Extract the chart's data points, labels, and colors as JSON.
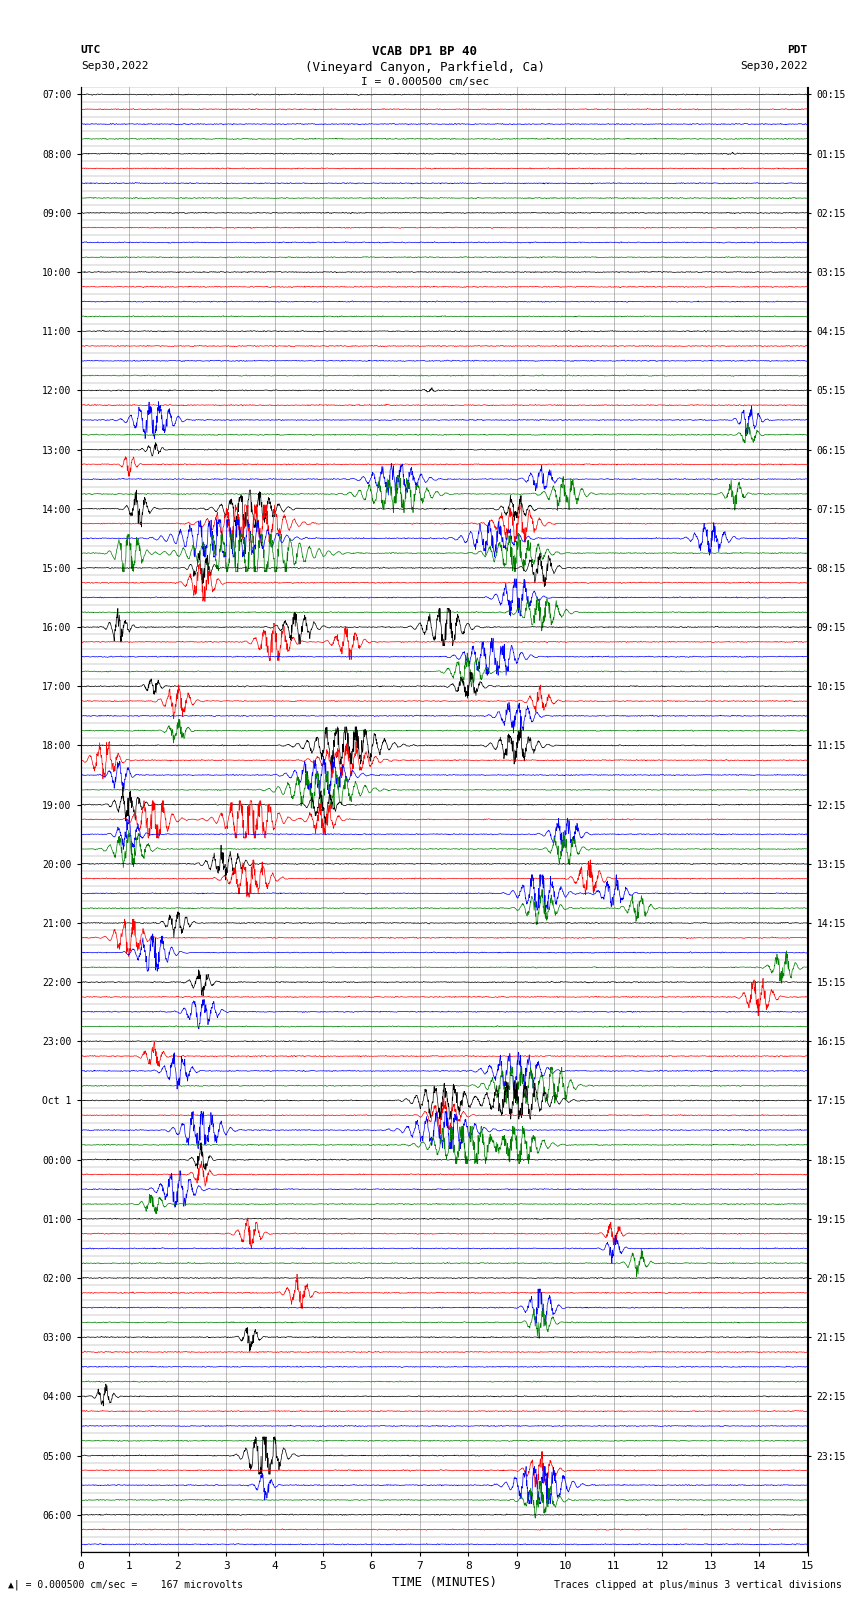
{
  "title_line1": "VCAB DP1 BP 40",
  "title_line2": "(Vineyard Canyon, Parkfield, Ca)",
  "scale_label": "I = 0.000500 cm/sec",
  "utc_label": "UTC",
  "utc_date": "Sep30,2022",
  "pdt_label": "PDT",
  "pdt_date": "Sep30,2022",
  "bottom_label_left": "= 0.000500 cm/sec =    167 microvolts",
  "bottom_label_right": "Traces clipped at plus/minus 3 vertical divisions",
  "xlabel": "TIME (MINUTES)",
  "xlim": [
    0,
    15
  ],
  "xticks": [
    0,
    1,
    2,
    3,
    4,
    5,
    6,
    7,
    8,
    9,
    10,
    11,
    12,
    13,
    14,
    15
  ],
  "bg_color": "#ffffff",
  "colors": [
    "black",
    "red",
    "blue",
    "green"
  ],
  "utc_labels": [
    "07:00",
    "08:00",
    "09:00",
    "10:00",
    "11:00",
    "12:00",
    "13:00",
    "14:00",
    "15:00",
    "16:00",
    "17:00",
    "18:00",
    "19:00",
    "20:00",
    "21:00",
    "22:00",
    "23:00",
    "Oct 1",
    "00:00",
    "01:00",
    "02:00",
    "03:00",
    "04:00",
    "05:00",
    "06:00"
  ],
  "pdt_labels": [
    "00:15",
    "01:15",
    "02:15",
    "03:15",
    "04:15",
    "05:15",
    "06:15",
    "07:15",
    "08:15",
    "09:15",
    "10:15",
    "11:15",
    "12:15",
    "13:15",
    "14:15",
    "15:15",
    "16:15",
    "17:15",
    "18:15",
    "19:15",
    "20:15",
    "21:15",
    "22:15",
    "23:15"
  ],
  "n_hours": 24,
  "traces_per_hour": 4,
  "noise_seed": 123
}
